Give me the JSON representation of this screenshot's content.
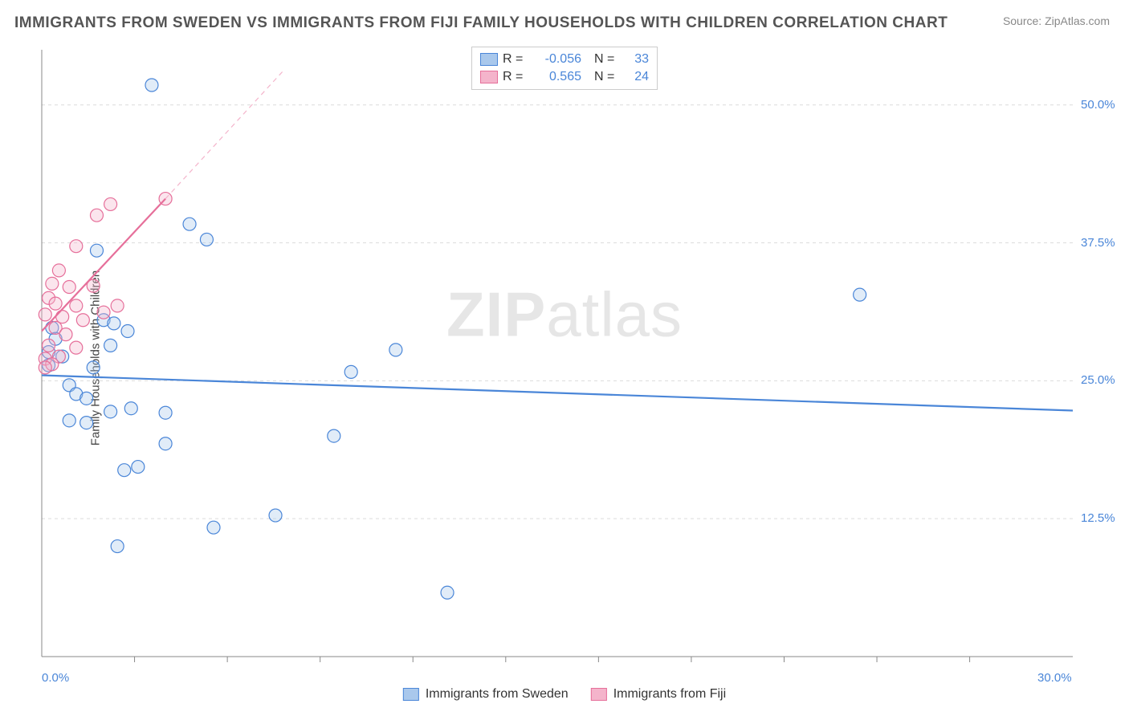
{
  "title": "IMMIGRANTS FROM SWEDEN VS IMMIGRANTS FROM FIJI FAMILY HOUSEHOLDS WITH CHILDREN CORRELATION CHART",
  "source_label": "Source:",
  "source_name": "ZipAtlas.com",
  "y_axis_label": "Family Households with Children",
  "watermark_bold": "ZIP",
  "watermark_rest": "atlas",
  "chart": {
    "type": "scatter",
    "background_color": "#ffffff",
    "grid_color": "#dcdcdc",
    "grid_dash": "4,4",
    "xlim": [
      0,
      30
    ],
    "ylim": [
      0,
      55
    ],
    "x_ticks": [
      0,
      30
    ],
    "x_tick_labels": [
      "0.0%",
      "30.0%"
    ],
    "x_minor_ticks": [
      2.7,
      5.4,
      8.1,
      10.8,
      13.5,
      16.2,
      18.9,
      21.6,
      24.3,
      27
    ],
    "y_ticks": [
      12.5,
      25.0,
      37.5,
      50.0
    ],
    "y_tick_labels": [
      "12.5%",
      "25.0%",
      "37.5%",
      "50.0%"
    ],
    "marker_radius": 8,
    "marker_stroke_width": 1.2,
    "marker_fill_opacity": 0.35,
    "series": [
      {
        "id": "sweden",
        "label": "Immigrants from Sweden",
        "color_stroke": "#4a86d8",
        "color_fill": "#a9c8ec",
        "R_label": "R =",
        "R_value": "-0.056",
        "N_label": "N =",
        "N_value": "33",
        "trend": {
          "x1": 0,
          "y1": 25.5,
          "x2": 30,
          "y2": 22.3,
          "width": 2.2,
          "dash": "none"
        },
        "points": [
          [
            3.2,
            51.8
          ],
          [
            4.3,
            39.2
          ],
          [
            4.8,
            37.8
          ],
          [
            1.6,
            36.8
          ],
          [
            0.3,
            29.8
          ],
          [
            1.8,
            30.5
          ],
          [
            2.1,
            30.2
          ],
          [
            2.5,
            29.5
          ],
          [
            10.3,
            27.8
          ],
          [
            0.2,
            27.6
          ],
          [
            0.8,
            24.6
          ],
          [
            1.0,
            23.8
          ],
          [
            1.3,
            23.4
          ],
          [
            2.0,
            22.2
          ],
          [
            1.5,
            26.2
          ],
          [
            2.6,
            22.5
          ],
          [
            3.6,
            22.1
          ],
          [
            0.8,
            21.4
          ],
          [
            1.3,
            21.2
          ],
          [
            2.4,
            16.9
          ],
          [
            3.6,
            19.3
          ],
          [
            2.8,
            17.2
          ],
          [
            6.8,
            12.8
          ],
          [
            5.0,
            11.7
          ],
          [
            2.2,
            10.0
          ],
          [
            11.8,
            5.8
          ],
          [
            8.5,
            20.0
          ],
          [
            9.0,
            25.8
          ],
          [
            23.8,
            32.8
          ],
          [
            0.4,
            28.8
          ],
          [
            0.2,
            26.4
          ],
          [
            0.6,
            27.2
          ],
          [
            2.0,
            28.2
          ]
        ]
      },
      {
        "id": "fiji",
        "label": "Immigrants from Fiji",
        "color_stroke": "#e66f9a",
        "color_fill": "#f4b4cb",
        "R_label": "R =",
        "R_value": "0.565",
        "N_label": "N =",
        "N_value": "24",
        "trend": {
          "x1": 0,
          "y1": 29.5,
          "x2": 3.6,
          "y2": 41.5,
          "width": 2.2,
          "dash": "none"
        },
        "trend_ext": {
          "x1": 3.6,
          "y1": 41.5,
          "x2": 7.0,
          "y2": 53.0,
          "width": 1.2,
          "dash": "6,5"
        },
        "points": [
          [
            3.6,
            41.5
          ],
          [
            2.0,
            41.0
          ],
          [
            1.6,
            40.0
          ],
          [
            1.0,
            37.2
          ],
          [
            0.5,
            35.0
          ],
          [
            0.3,
            33.8
          ],
          [
            0.8,
            33.5
          ],
          [
            1.5,
            33.6
          ],
          [
            0.2,
            32.5
          ],
          [
            0.4,
            32.0
          ],
          [
            1.0,
            31.8
          ],
          [
            0.6,
            30.8
          ],
          [
            1.2,
            30.5
          ],
          [
            1.8,
            31.2
          ],
          [
            2.2,
            31.8
          ],
          [
            0.1,
            31.0
          ],
          [
            0.4,
            29.8
          ],
          [
            0.7,
            29.2
          ],
          [
            1.0,
            28.0
          ],
          [
            0.2,
            28.2
          ],
          [
            0.5,
            27.2
          ],
          [
            0.1,
            27.0
          ],
          [
            0.3,
            26.5
          ],
          [
            0.1,
            26.2
          ]
        ]
      }
    ]
  },
  "legend_top": {
    "border_color": "#cccccc"
  },
  "axis_label_color": "#4a86d8",
  "axis_label_fontsize": 15
}
